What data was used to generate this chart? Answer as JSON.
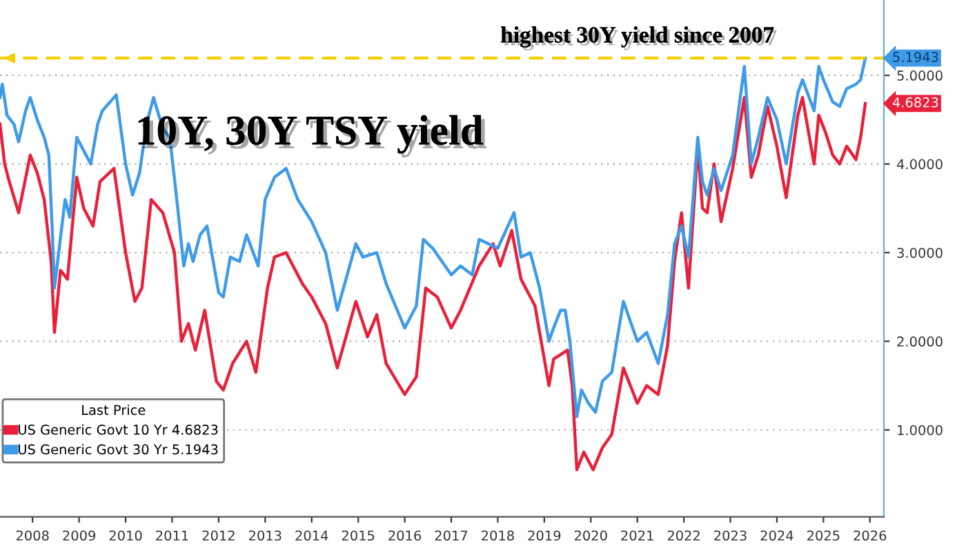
{
  "chart_data": {
    "type": "line",
    "title": "10Y, 30Y TSY yield",
    "x": [
      2007.8,
      2007.85,
      2007.95,
      2008.1,
      2008.2,
      2008.35,
      2008.45,
      2008.6,
      2008.75,
      2008.85,
      2008.92,
      2008.97,
      2009.05,
      2009.2,
      2009.3,
      2009.45,
      2009.55,
      2009.75,
      2009.9,
      2010.0,
      2010.3,
      2010.5,
      2010.65,
      2010.8,
      2010.95,
      2011.1,
      2011.3,
      2011.45,
      2011.6,
      2011.75,
      2011.85,
      2011.95,
      2012.1,
      2012.25,
      2012.5,
      2012.6,
      2012.75,
      2012.95,
      2013.1,
      2013.35,
      2013.5,
      2013.7,
      2013.95,
      2014.2,
      2014.5,
      2014.8,
      2015.05,
      2015.45,
      2015.6,
      2015.9,
      2016.1,
      2016.5,
      2016.75,
      2016.9,
      2017.1,
      2017.5,
      2017.7,
      2017.95,
      2018.1,
      2018.5,
      2018.85,
      2019.0,
      2019.2,
      2019.4,
      2019.6,
      2019.7,
      2019.85,
      2019.95,
      2020.05,
      2020.2,
      2020.3,
      2020.45,
      2020.6,
      2020.75,
      2020.95,
      2021.2,
      2021.5,
      2021.7,
      2021.95,
      2022.15,
      2022.3,
      2022.45,
      2022.6,
      2022.8,
      2022.9,
      2023.0,
      2023.15,
      2023.3,
      2023.55,
      2023.8,
      2023.95,
      2024.1,
      2024.3,
      2024.5,
      2024.7,
      2024.95,
      2025.05,
      2025.3,
      2025.4,
      2025.5,
      2025.7,
      2025.85,
      2026.0,
      2026.2,
      2026.3,
      2026.4
    ],
    "series": [
      {
        "name": "US Generic Govt 10 Yr 4.6823",
        "color": "#e8213b",
        "x": [
          2007.8,
          2007.9,
          2008.0,
          2008.2,
          2008.45,
          2008.6,
          2008.75,
          2008.9,
          2008.97,
          2009.1,
          2009.25,
          2009.45,
          2009.6,
          2009.8,
          2009.95,
          2010.25,
          2010.5,
          2010.7,
          2010.85,
          2011.05,
          2011.3,
          2011.55,
          2011.7,
          2011.85,
          2012.0,
          2012.2,
          2012.45,
          2012.6,
          2012.8,
          2013.1,
          2013.3,
          2013.55,
          2013.7,
          2013.95,
          2014.3,
          2014.5,
          2014.8,
          2015.05,
          2015.45,
          2015.7,
          2015.9,
          2016.1,
          2016.5,
          2016.75,
          2016.95,
          2017.2,
          2017.5,
          2017.7,
          2018.1,
          2018.4,
          2018.55,
          2018.8,
          2019.0,
          2019.3,
          2019.6,
          2019.7,
          2019.85,
          2020.0,
          2020.1,
          2020.2,
          2020.35,
          2020.55,
          2020.75,
          2020.95,
          2021.2,
          2021.5,
          2021.7,
          2021.95,
          2022.15,
          2022.3,
          2022.45,
          2022.6,
          2022.8,
          2022.9,
          2023.0,
          2023.15,
          2023.3,
          2023.55,
          2023.8,
          2023.95,
          2024.1,
          2024.3,
          2024.5,
          2024.7,
          2024.95,
          2025.05,
          2025.3,
          2025.4,
          2025.55,
          2025.7,
          2025.85,
          2026.0,
          2026.2,
          2026.3,
          2026.4
        ],
        "values": [
          4.45,
          4.0,
          3.8,
          3.45,
          4.1,
          3.9,
          3.6,
          2.9,
          2.1,
          2.8,
          2.7,
          3.85,
          3.5,
          3.3,
          3.8,
          3.95,
          3.0,
          2.45,
          2.6,
          3.6,
          3.45,
          3.0,
          2.0,
          2.2,
          1.9,
          2.35,
          1.55,
          1.45,
          1.75,
          2.0,
          1.65,
          2.6,
          2.95,
          3.0,
          2.65,
          2.5,
          2.2,
          1.7,
          2.45,
          2.05,
          2.3,
          1.75,
          1.4,
          1.6,
          2.6,
          2.5,
          2.15,
          2.35,
          2.85,
          3.1,
          2.85,
          3.25,
          2.7,
          2.4,
          1.5,
          1.8,
          1.85,
          1.9,
          1.5,
          0.55,
          0.75,
          0.55,
          0.8,
          0.95,
          1.7,
          1.3,
          1.5,
          1.4,
          1.95,
          2.9,
          3.45,
          2.6,
          4.2,
          3.5,
          3.45,
          4.0,
          3.35,
          3.95,
          4.75,
          3.85,
          4.1,
          4.65,
          4.2,
          3.62,
          4.55,
          4.75,
          4.0,
          4.55,
          4.35,
          4.1,
          4.0,
          4.2,
          4.05,
          4.3,
          4.6823
        ]
      },
      {
        "name": "US Generic Govt 30 Yr 5.1943",
        "color": "#3f9be8",
        "values": [
          4.75,
          4.9,
          4.55,
          4.45,
          4.25,
          4.6,
          4.75,
          4.5,
          4.3,
          4.1,
          3.3,
          2.6,
          2.95,
          3.6,
          3.4,
          4.3,
          4.2,
          4.0,
          4.45,
          4.6,
          4.78,
          4.0,
          3.65,
          3.9,
          4.45,
          4.75,
          4.4,
          4.3,
          3.6,
          2.85,
          3.1,
          2.9,
          3.2,
          3.3,
          2.55,
          2.5,
          2.95,
          2.9,
          3.2,
          2.85,
          3.6,
          3.85,
          3.95,
          3.6,
          3.35,
          3.0,
          2.35,
          3.1,
          2.95,
          3.0,
          2.65,
          2.15,
          2.4,
          3.15,
          3.05,
          2.75,
          2.85,
          2.75,
          3.15,
          3.05,
          3.45,
          2.95,
          3.0,
          2.6,
          2.0,
          2.15,
          2.35,
          2.35,
          2.0,
          1.15,
          1.45,
          1.3,
          1.2,
          1.55,
          1.65,
          2.45,
          2.0,
          2.1,
          1.75,
          2.3,
          3.1,
          3.3,
          2.95,
          4.3,
          3.8,
          3.65,
          3.95,
          3.7,
          4.1,
          5.1,
          4.0,
          4.3,
          4.75,
          4.5,
          4.0,
          4.8,
          4.95,
          4.6,
          5.1,
          4.95,
          4.7,
          4.65,
          4.85,
          4.9,
          4.95,
          5.1943
        ]
      }
    ],
    "xlim": [
      2007.8,
      2026.8
    ],
    "xticks": [
      {
        "value": 2008.5,
        "label": "2008"
      },
      {
        "value": 2009.5,
        "label": "2009"
      },
      {
        "value": 2010.5,
        "label": "2010"
      },
      {
        "value": 2011.5,
        "label": "2011"
      },
      {
        "value": 2012.5,
        "label": "2012"
      },
      {
        "value": 2013.5,
        "label": "2013"
      },
      {
        "value": 2014.5,
        "label": "2014"
      },
      {
        "value": 2015.5,
        "label": "2015"
      },
      {
        "value": 2016.5,
        "label": "2016"
      },
      {
        "value": 2017.5,
        "label": "2017"
      },
      {
        "value": 2018.5,
        "label": "2018"
      },
      {
        "value": 2019.5,
        "label": "2019"
      },
      {
        "value": 2020.5,
        "label": "2020"
      },
      {
        "value": 2021.5,
        "label": "2021"
      },
      {
        "value": 2022.5,
        "label": "2022"
      },
      {
        "value": 2023.5,
        "label": "2023"
      },
      {
        "value": 2024.5,
        "label": "2024"
      },
      {
        "value": 2025.5,
        "label": "2025"
      },
      {
        "value": 2026.5,
        "label": "2026"
      }
    ],
    "ylim": [
      0.02,
      5.85
    ],
    "yticks": [
      {
        "value": 1,
        "label": "1.0000"
      },
      {
        "value": 2,
        "label": "2.0000"
      },
      {
        "value": 3,
        "label": "3.0000"
      },
      {
        "value": 4,
        "label": "4.0000"
      },
      {
        "value": 5,
        "label": "5.0000"
      }
    ],
    "ref_lines": [
      {
        "axis": "y",
        "value": 5.1943,
        "label": "highest 30Y yield since 2007",
        "color": "#f5d000",
        "line_style": "dashed"
      }
    ],
    "annotations": [
      {
        "text": "5.1943",
        "x": 2026.4,
        "y": 5.1943
      },
      {
        "text": "4.6823",
        "x": 2026.4,
        "y": 4.6823
      }
    ],
    "legend_title": "Last Price",
    "legend": "bottom left",
    "grid": "y"
  }
}
